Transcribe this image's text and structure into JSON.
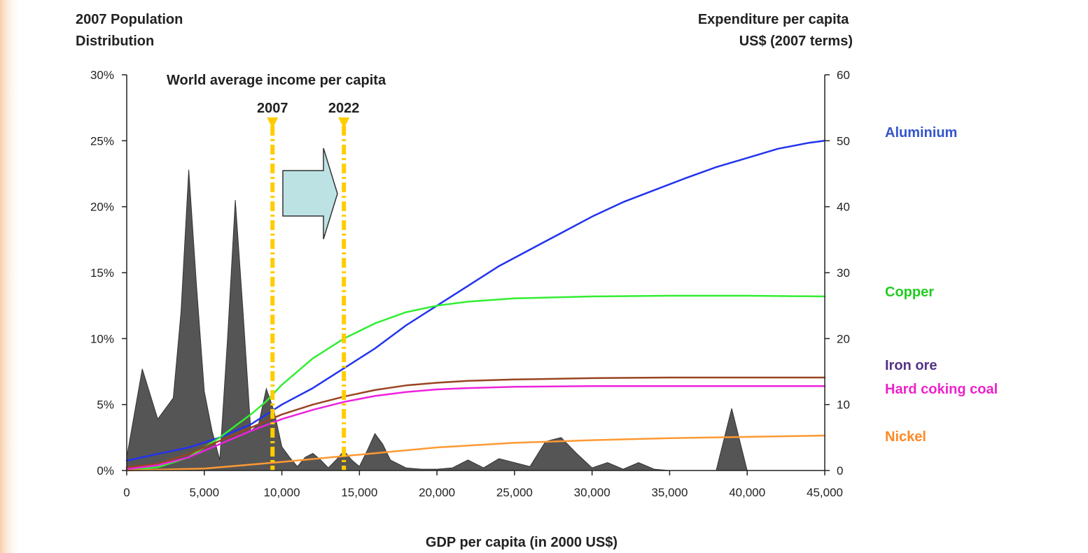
{
  "chart_data": {
    "type": "area+line",
    "left_axis_title": [
      "2007 Population",
      "Distribution"
    ],
    "right_axis_title": [
      "Expenditure per capita",
      "US$ (2007 terms)"
    ],
    "xlabel": "GDP per capita (in 2000 US$)",
    "xlim": [
      0,
      45000
    ],
    "x_ticks": [
      0,
      5000,
      10000,
      15000,
      20000,
      25000,
      30000,
      35000,
      40000,
      45000
    ],
    "x_tick_labels": [
      "0",
      "5,000",
      "10,000",
      "15,000",
      "20,000",
      "25,000",
      "30,000",
      "35,000",
      "40,000",
      "45,000"
    ],
    "y_left_lim": [
      0,
      30
    ],
    "y_left_ticks": [
      0,
      5,
      10,
      15,
      20,
      25,
      30
    ],
    "y_left_tick_labels": [
      "0%",
      "5%",
      "10%",
      "15%",
      "20%",
      "25%",
      "30%"
    ],
    "y_right_lim": [
      0,
      60
    ],
    "y_right_ticks": [
      0,
      10,
      20,
      30,
      40,
      50,
      60
    ],
    "y_right_tick_labels": [
      "0",
      "10",
      "20",
      "30",
      "40",
      "50",
      "60"
    ],
    "annotation": {
      "title": "World average income per capita",
      "markers": [
        {
          "label": "2007",
          "x": 9400
        },
        {
          "label": "2022",
          "x": 14000
        }
      ]
    },
    "population_distribution": {
      "axis": "left",
      "color": "#555555",
      "x": [
        0,
        1000,
        2000,
        3000,
        3500,
        4000,
        4500,
        5000,
        5500,
        6000,
        6500,
        7000,
        7500,
        8000,
        8500,
        9000,
        9500,
        10000,
        10500,
        11000,
        11500,
        12000,
        12500,
        13000,
        13500,
        14000,
        14500,
        15000,
        15500,
        16000,
        16500,
        17000,
        18000,
        19000,
        20000,
        21000,
        22000,
        23000,
        24000,
        25000,
        26000,
        27000,
        28000,
        29000,
        30000,
        31000,
        32000,
        33000,
        34000,
        35000,
        38000,
        39000,
        40000
      ],
      "values": [
        1.0,
        7.7,
        3.9,
        5.5,
        12.0,
        22.8,
        14.0,
        6.0,
        3.0,
        0.8,
        10.0,
        20.5,
        12.0,
        3.0,
        3.5,
        6.2,
        4.5,
        1.8,
        1.0,
        0.3,
        1.0,
        1.3,
        0.8,
        0.2,
        0.8,
        1.5,
        0.8,
        0.3,
        1.5,
        2.8,
        2.0,
        0.8,
        0.2,
        0.1,
        0.1,
        0.2,
        0.8,
        0.2,
        0.9,
        0.6,
        0.3,
        2.2,
        2.5,
        1.3,
        0.2,
        0.6,
        0.1,
        0.6,
        0.1,
        0.0,
        0.0,
        4.7,
        0.0
      ]
    },
    "series": [
      {
        "name": "Aluminium",
        "color": "#2233ee",
        "label_color": "#3355cc",
        "axis": "right",
        "x": [
          0,
          2000,
          4000,
          6000,
          8000,
          10000,
          12000,
          14000,
          16000,
          18000,
          20000,
          22000,
          24000,
          26000,
          28000,
          30000,
          32000,
          34000,
          36000,
          38000,
          40000,
          42000,
          44000,
          45000
        ],
        "values": [
          1.5,
          2.5,
          3.5,
          5.0,
          7.0,
          10.0,
          12.5,
          15.5,
          18.5,
          22.0,
          25.0,
          28.0,
          31.0,
          33.5,
          36.0,
          38.5,
          40.7,
          42.5,
          44.3,
          46.0,
          47.4,
          48.8,
          49.7,
          50.0
        ]
      },
      {
        "name": "Copper",
        "color": "#33ee33",
        "label_color": "#22cc22",
        "axis": "right",
        "x": [
          0,
          2000,
          4000,
          6000,
          8000,
          9000,
          10000,
          12000,
          14000,
          16000,
          18000,
          20000,
          22000,
          25000,
          30000,
          35000,
          40000,
          45000
        ],
        "values": [
          0.0,
          0.5,
          2.0,
          5.0,
          8.5,
          10.5,
          13.0,
          17.0,
          20.0,
          22.3,
          24.0,
          25.0,
          25.6,
          26.1,
          26.4,
          26.5,
          26.5,
          26.4
        ]
      },
      {
        "name": "Iron ore",
        "color": "#994422",
        "label_color": "#553388",
        "axis": "right",
        "x": [
          0,
          2000,
          4000,
          6000,
          8000,
          10000,
          12000,
          14000,
          16000,
          18000,
          20000,
          22000,
          25000,
          30000,
          35000,
          40000,
          45000
        ],
        "values": [
          0.5,
          1.0,
          2.5,
          4.5,
          6.5,
          8.5,
          10.0,
          11.2,
          12.2,
          12.9,
          13.3,
          13.6,
          13.8,
          14.0,
          14.1,
          14.1,
          14.1
        ]
      },
      {
        "name": "Hard coking coal",
        "color": "#ee22dd",
        "label_color": "#ee22cc",
        "axis": "right",
        "x": [
          0,
          2000,
          4000,
          6000,
          8000,
          10000,
          12000,
          14000,
          16000,
          18000,
          20000,
          22000,
          25000,
          30000,
          35000,
          40000,
          45000
        ],
        "values": [
          0.2,
          0.8,
          2.0,
          4.0,
          6.0,
          7.8,
          9.2,
          10.4,
          11.3,
          11.9,
          12.3,
          12.5,
          12.7,
          12.8,
          12.8,
          12.8,
          12.8
        ]
      },
      {
        "name": "Nickel",
        "color": "#ff9933",
        "label_color": "#ff8822",
        "axis": "right",
        "x": [
          0,
          5000,
          10000,
          15000,
          20000,
          25000,
          30000,
          35000,
          40000,
          45000
        ],
        "values": [
          0.0,
          0.3,
          1.3,
          2.4,
          3.5,
          4.2,
          4.6,
          4.9,
          5.1,
          5.3
        ]
      }
    ]
  }
}
